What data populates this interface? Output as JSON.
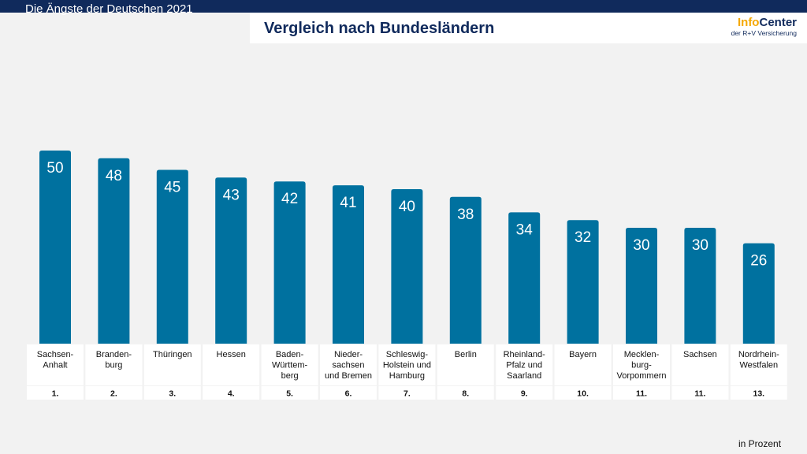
{
  "header": {
    "title": "Die Ängste der Deutschen 2021",
    "subtitle": "Vergleich nach Bundesländern"
  },
  "logo": {
    "info": "Info",
    "center": "Center",
    "sub": "der R+V Versicherung"
  },
  "footnote": "in Prozent",
  "colors": {
    "bar": "#00719f",
    "header_bg": "#102a5c",
    "logo_accent": "#f5a800"
  },
  "chart_data": {
    "type": "bar",
    "title": "Vergleich nach Bundesländern",
    "unit": "in Prozent",
    "categories": [
      "Sachsen-\nAnhalt",
      "Branden-\nburg",
      "Thüringen",
      "Hessen",
      "Baden-\nWürttem-\nberg",
      "Nieder-\nsachsen\nund Bremen",
      "Schleswig-\nHolstein und\nHamburg",
      "Berlin",
      "Rheinland-\nPfalz und\nSaarland",
      "Bayern",
      "Mecklen-\nburg-\nVorpommern",
      "Sachsen",
      "Nordrhein-\nWestfalen"
    ],
    "values": [
      50,
      48,
      45,
      43,
      42,
      41,
      40,
      38,
      34,
      32,
      30,
      30,
      26
    ],
    "ranks": [
      "1.",
      "2.",
      "3.",
      "4.",
      "5.",
      "6.",
      "7.",
      "8.",
      "9.",
      "10.",
      "11.",
      "11.",
      "13."
    ],
    "ylim": [
      0,
      50
    ],
    "xlabel": "",
    "ylabel": ""
  }
}
